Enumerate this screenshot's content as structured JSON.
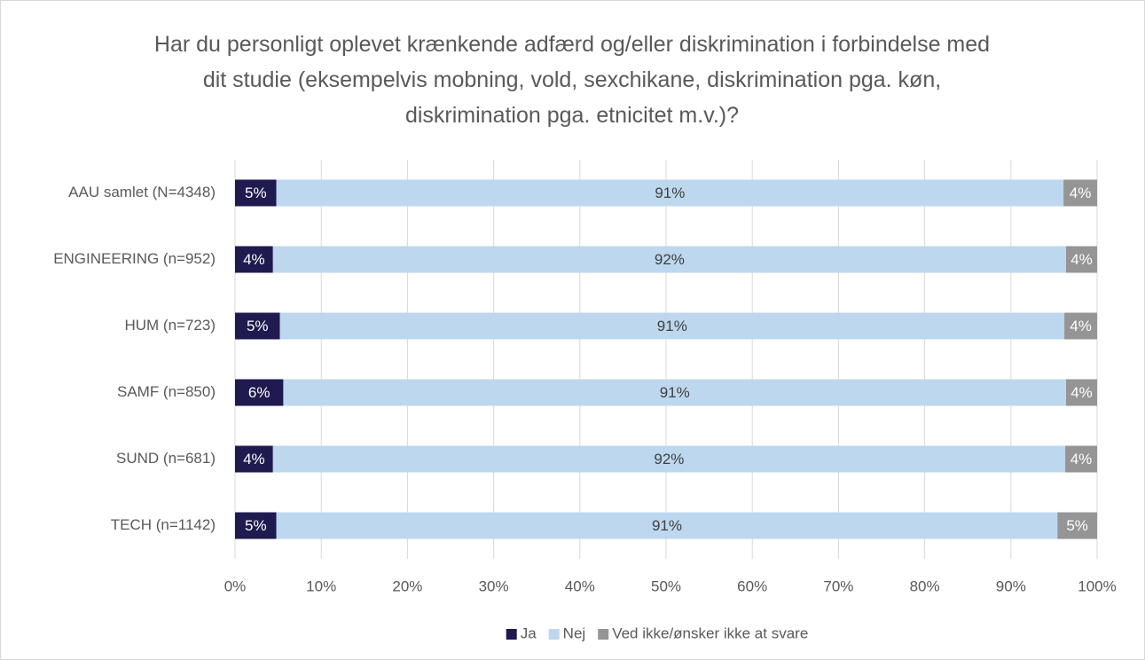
{
  "chart_data": {
    "type": "stacked_barh",
    "title": "Har du personligt oplevet krænkende adfærd og/eller diskrimination i forbindelse med dit studie (eksempelvis mobning, vold, sexchikane, diskrimination pga. køn, diskrimination pga. etnicitet m.v.)?",
    "categories": [
      "AAU samlet (N=4348)",
      "ENGINEERING (n=952)",
      "HUM (n=723)",
      "SAMF (n=850)",
      "SUND (n=681)",
      "TECH (n=1142)"
    ],
    "series": [
      {
        "name": "Ja",
        "color": "#1f1a4f",
        "label_color": "#ffffff",
        "values": [
          4.8,
          4.4,
          5.2,
          5.6,
          4.4,
          4.8
        ],
        "value_labels": [
          "5%",
          "4%",
          "5%",
          "6%",
          "4%",
          "5%"
        ]
      },
      {
        "name": "Nej",
        "color": "#bdd7ee",
        "label_color": "#404040",
        "values": [
          91.3,
          92.0,
          91.0,
          90.8,
          91.9,
          90.6
        ],
        "value_labels": [
          "91%",
          "92%",
          "91%",
          "91%",
          "92%",
          "91%"
        ]
      },
      {
        "name": "Ved ikke/ønsker ikke at svare",
        "color": "#959595",
        "label_color": "#ffffff",
        "values": [
          3.9,
          3.6,
          3.8,
          3.6,
          3.7,
          4.6
        ],
        "value_labels": [
          "4%",
          "4%",
          "4%",
          "4%",
          "4%",
          "5%"
        ]
      }
    ],
    "xlim": [
      0,
      100
    ],
    "xticks": [
      {
        "value": 0,
        "label": "0%"
      },
      {
        "value": 10,
        "label": "10%"
      },
      {
        "value": 20,
        "label": "20%"
      },
      {
        "value": 30,
        "label": "30%"
      },
      {
        "value": 40,
        "label": "40%"
      },
      {
        "value": 50,
        "label": "50%"
      },
      {
        "value": 60,
        "label": "60%"
      },
      {
        "value": 70,
        "label": "70%"
      },
      {
        "value": 80,
        "label": "80%"
      },
      {
        "value": 90,
        "label": "90%"
      },
      {
        "value": 100,
        "label": "100%"
      }
    ],
    "grid": true,
    "legend": "bottom"
  }
}
